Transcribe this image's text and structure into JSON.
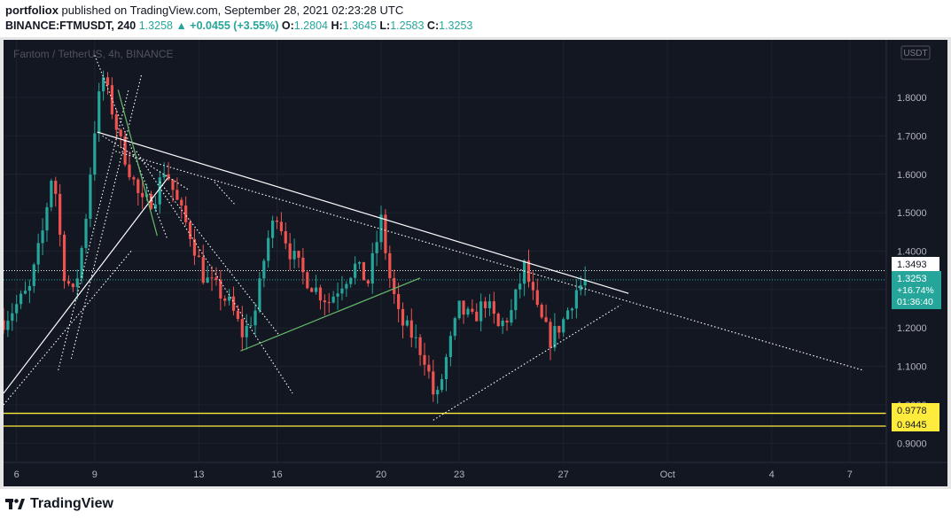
{
  "header": {
    "publisher": "portfoliox",
    "published_text": " published on TradingView.com, September 28, 2021 02:23:28 UTC",
    "symbol": "BINANCE:FTMUSDT, 240",
    "last": "1.3258",
    "change": "▲ +0.0455 (+3.55%)",
    "o_label": "O:",
    "o_value": "1.2804",
    "h_label": "H:",
    "h_value": "1.3645",
    "l_label": "L:",
    "l_value": "1.2583",
    "c_label": "C:",
    "c_value": "1.3253"
  },
  "chart_title": "Fantom / TetherUS, 4h, BINANCE",
  "currency_badge": "USDT",
  "price_tags": {
    "level_1": "1.3493",
    "last_price": "1.3253",
    "last_change": "+16.74%",
    "countdown": "01:36:40",
    "support_1": "0.9778",
    "support_2": "0.9445"
  },
  "brand": {
    "name": "TradingView"
  },
  "colors": {
    "background": "#131722",
    "bull": "#26a69a",
    "bear": "#ef5350",
    "support_line": "#ffeb3b",
    "trend_line": "#ffffff",
    "channel_line": "#66bb6a"
  },
  "chart_data": {
    "type": "candlestick",
    "title": "Fantom / TetherUS, 4h, BINANCE",
    "xlabel": "",
    "ylabel": "",
    "ylim": [
      0.85,
      1.95
    ],
    "y_ticks": [
      "0.9000",
      "1.0000",
      "1.1000",
      "1.2000",
      "1.3000",
      "1.4000",
      "1.5000",
      "1.6000",
      "1.7000",
      "1.8000"
    ],
    "y_tick_values": [
      0.9,
      1.0,
      1.1,
      1.2,
      1.3,
      1.4,
      1.5,
      1.6,
      1.7,
      1.8
    ],
    "x_ticks": [
      {
        "label": "6",
        "day": 6
      },
      {
        "label": "9",
        "day": 9
      },
      {
        "label": "13",
        "day": 13
      },
      {
        "label": "16",
        "day": 16
      },
      {
        "label": "20",
        "day": 20
      },
      {
        "label": "23",
        "day": 23
      },
      {
        "label": "27",
        "day": 27
      },
      {
        "label": "Oct",
        "day": 31
      },
      {
        "label": "4",
        "day": 35
      },
      {
        "label": "7",
        "day": 38
      }
    ],
    "x_range_days": [
      5.5,
      39.4
    ],
    "close_waypoints": [
      [
        5.5,
        1.22
      ],
      [
        6.0,
        1.26
      ],
      [
        6.5,
        1.3
      ],
      [
        7.0,
        1.45
      ],
      [
        7.4,
        1.62
      ],
      [
        7.8,
        1.35
      ],
      [
        8.2,
        1.28
      ],
      [
        8.6,
        1.45
      ],
      [
        9.0,
        1.72
      ],
      [
        9.3,
        1.86
      ],
      [
        9.7,
        1.76
      ],
      [
        10.0,
        1.68
      ],
      [
        10.4,
        1.6
      ],
      [
        10.8,
        1.52
      ],
      [
        11.3,
        1.54
      ],
      [
        11.7,
        1.62
      ],
      [
        12.2,
        1.52
      ],
      [
        12.7,
        1.44
      ],
      [
        13.2,
        1.33
      ],
      [
        13.7,
        1.3
      ],
      [
        14.2,
        1.26
      ],
      [
        14.7,
        1.18
      ],
      [
        15.2,
        1.25
      ],
      [
        15.6,
        1.42
      ],
      [
        16.0,
        1.5
      ],
      [
        16.5,
        1.4
      ],
      [
        17.0,
        1.34
      ],
      [
        17.5,
        1.3
      ],
      [
        18.0,
        1.27
      ],
      [
        18.5,
        1.32
      ],
      [
        19.0,
        1.36
      ],
      [
        19.5,
        1.32
      ],
      [
        20.0,
        1.48
      ],
      [
        20.3,
        1.34
      ],
      [
        20.7,
        1.22
      ],
      [
        21.2,
        1.18
      ],
      [
        21.7,
        1.12
      ],
      [
        22.1,
        1.0
      ],
      [
        22.5,
        1.12
      ],
      [
        23.0,
        1.25
      ],
      [
        23.5,
        1.22
      ],
      [
        24.0,
        1.27
      ],
      [
        24.5,
        1.2
      ],
      [
        25.0,
        1.24
      ],
      [
        25.5,
        1.36
      ],
      [
        26.0,
        1.24
      ],
      [
        26.5,
        1.17
      ],
      [
        27.0,
        1.22
      ],
      [
        27.5,
        1.3
      ],
      [
        27.9,
        1.3253
      ]
    ],
    "support_levels": [
      0.9778,
      0.9445
    ],
    "marked_levels": [
      1.3493,
      1.3253
    ],
    "last_price": 1.3253,
    "last_change_pct": 16.74,
    "drawings": [
      {
        "kind": "solid",
        "color": "#ffffff",
        "from": [
          9.1,
          1.71
        ],
        "to": [
          29.5,
          1.29
        ]
      },
      {
        "kind": "dotted",
        "color": "#ffffff",
        "from": [
          9.8,
          1.66
        ],
        "to": [
          38.5,
          1.09
        ]
      },
      {
        "kind": "dotted",
        "color": "#ffffff",
        "from": [
          22.0,
          0.96
        ],
        "to": [
          29.2,
          1.26
        ]
      },
      {
        "kind": "solid",
        "color": "#66bb6a",
        "from": [
          14.6,
          1.14
        ],
        "to": [
          21.5,
          1.33
        ]
      },
      {
        "kind": "solid",
        "color": "#ffffff",
        "from": [
          5.5,
          1.03
        ],
        "to": [
          11.8,
          1.59
        ]
      },
      {
        "kind": "dotted",
        "color": "#ffffff",
        "from": [
          9.0,
          1.91
        ],
        "to": [
          11.8,
          1.43
        ]
      },
      {
        "kind": "dotted",
        "color": "#ffffff",
        "from": [
          10.6,
          1.66
        ],
        "to": [
          16.6,
          1.03
        ]
      },
      {
        "kind": "dotted",
        "color": "#ffffff",
        "from": [
          11.5,
          1.58
        ],
        "to": [
          16.1,
          1.18
        ]
      },
      {
        "kind": "dotted",
        "color": "#ffffff",
        "from": [
          10.4,
          1.4
        ],
        "to": [
          5.5,
          1.0
        ]
      },
      {
        "kind": "dotted",
        "color": "#ffffff",
        "from": [
          7.6,
          1.09
        ],
        "to": [
          10.3,
          1.82
        ]
      },
      {
        "kind": "dotted",
        "color": "#ffffff",
        "from": [
          8.1,
          1.12
        ],
        "to": [
          10.8,
          1.86
        ]
      },
      {
        "kind": "dotted",
        "color": "#ffffff",
        "from": [
          9.3,
          1.7
        ],
        "to": [
          12.6,
          1.56
        ]
      },
      {
        "kind": "solid",
        "color": "#66bb6a",
        "from": [
          9.9,
          1.82
        ],
        "to": [
          11.4,
          1.44
        ]
      },
      {
        "kind": "dotted",
        "color": "#ffffff",
        "from": [
          13.6,
          1.58
        ],
        "to": [
          14.4,
          1.52
        ]
      }
    ]
  }
}
